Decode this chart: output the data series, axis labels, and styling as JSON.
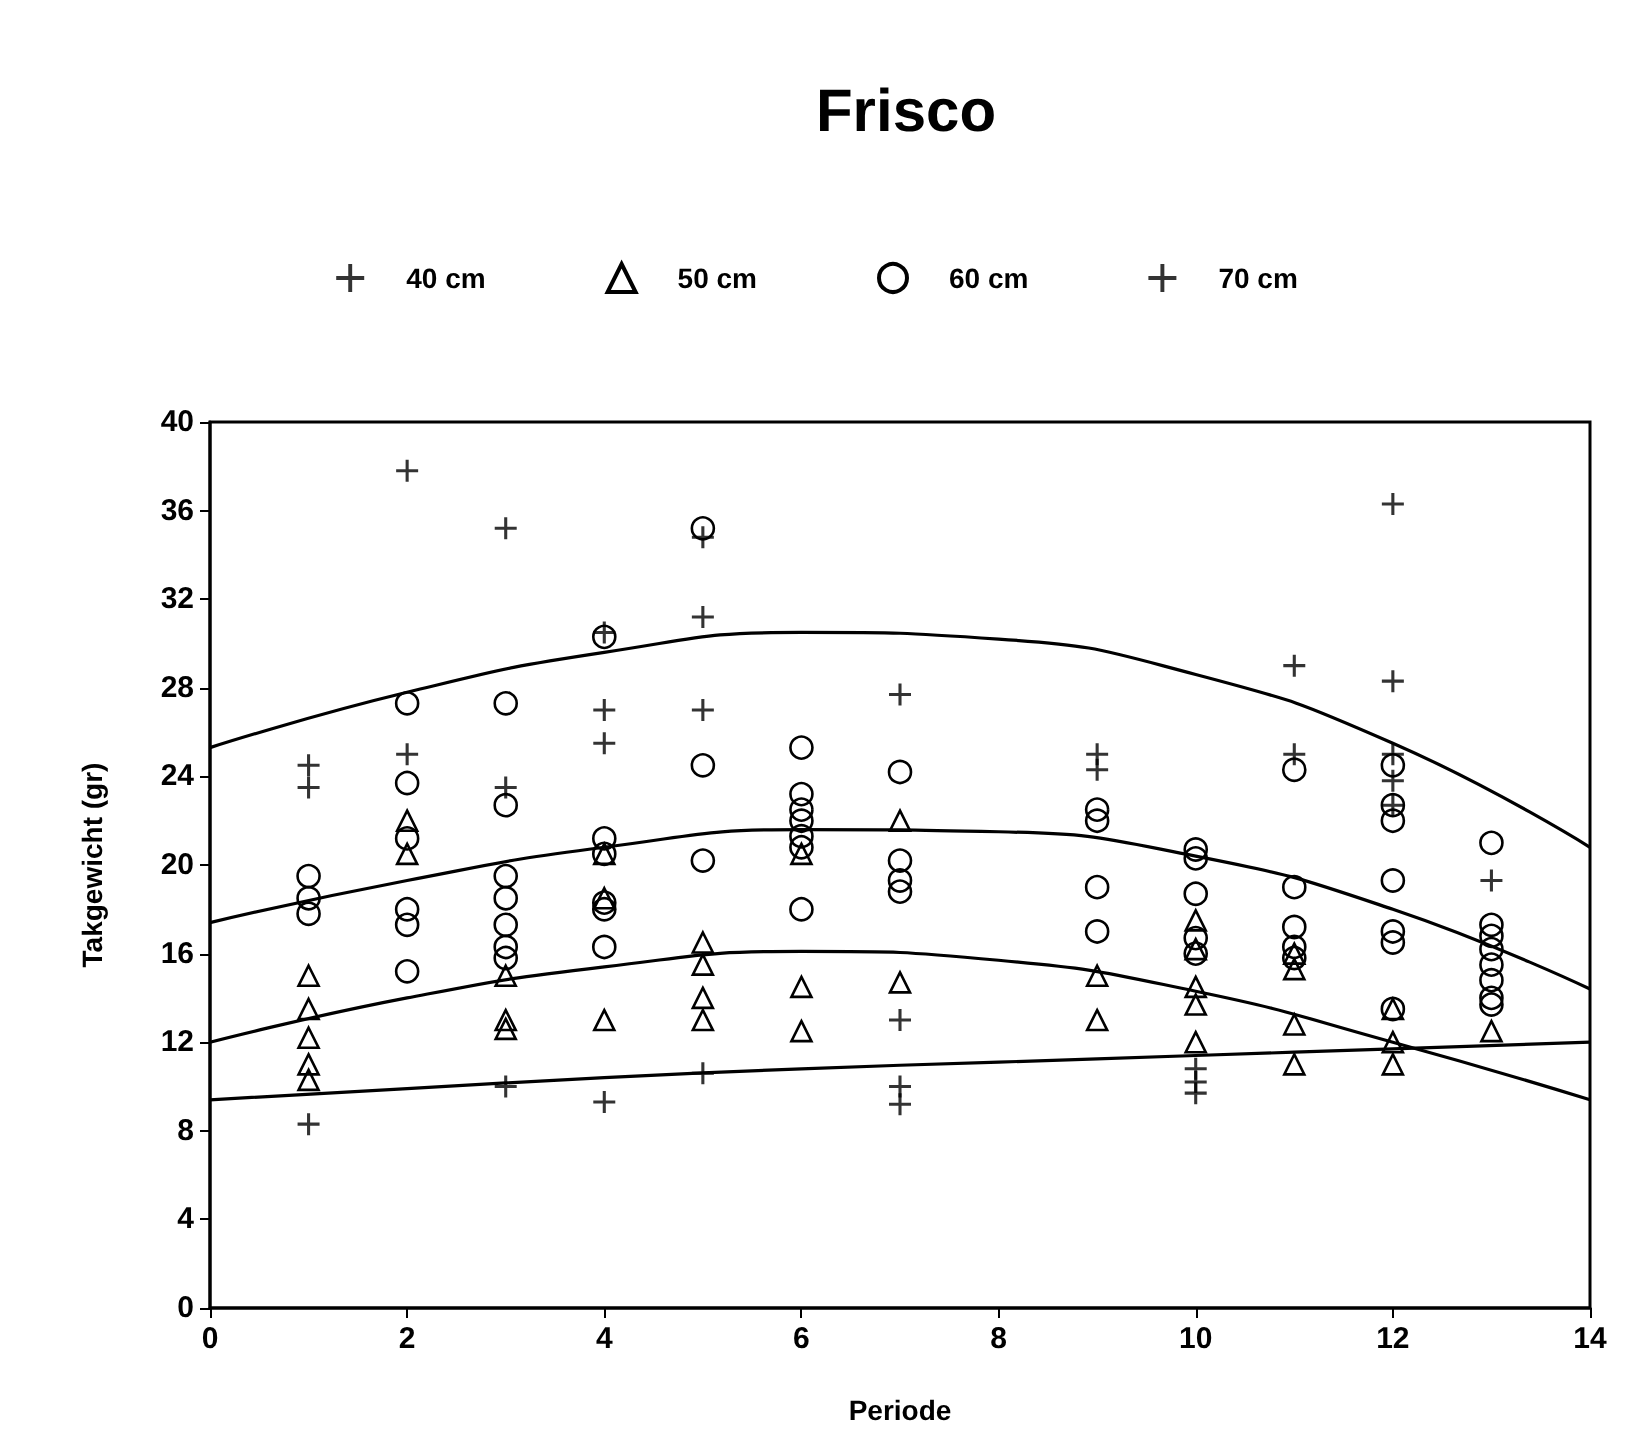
{
  "chart_data": {
    "type": "scatter",
    "title": "Frisco",
    "xlabel": "Periode",
    "ylabel": "Takgewicht (gr)",
    "xlim": [
      0,
      14
    ],
    "xticks": [
      0,
      2,
      4,
      6,
      8,
      10,
      12,
      14
    ],
    "ylim": [
      0,
      40
    ],
    "yticks": [
      0,
      4,
      8,
      12,
      16,
      20,
      24,
      28,
      32,
      36,
      40
    ],
    "grid": false,
    "legend": "top",
    "series": [
      {
        "name": "40 cm",
        "color": "#000000",
        "marker": "cross",
        "x": [
          1,
          3,
          4,
          5,
          7,
          7,
          7,
          10,
          10,
          10
        ],
        "values": [
          8.3,
          10,
          9.3,
          10.6,
          13,
          10,
          9.2,
          10.8,
          10.2,
          9.7
        ]
      },
      {
        "name": "50 cm",
        "color": "#000000",
        "marker": "triangle",
        "x": [
          1,
          1,
          1,
          1,
          1,
          2,
          2,
          3,
          3,
          3,
          4,
          4,
          4,
          5,
          5,
          5,
          5,
          6,
          6,
          6,
          7,
          7,
          9,
          9,
          10,
          10,
          10,
          10,
          10,
          11,
          11,
          11,
          11,
          12,
          12,
          12,
          13
        ],
        "values": [
          15,
          13.5,
          12.2,
          11,
          10.3,
          22,
          20.5,
          15,
          13,
          12.6,
          20.5,
          18.5,
          13,
          16.5,
          15.5,
          14,
          13,
          20.5,
          14.5,
          12.5,
          22,
          14.7,
          15,
          13,
          17.5,
          16.2,
          14.5,
          13.7,
          12,
          16,
          15.3,
          12.8,
          11,
          13.5,
          12,
          11,
          12.5
        ]
      },
      {
        "name": "60 cm",
        "color": "#000000",
        "marker": "circle",
        "x": [
          1,
          1,
          1,
          2,
          2,
          2,
          2,
          2,
          2,
          3,
          3,
          3,
          3,
          3,
          3,
          3,
          4,
          4,
          4,
          4,
          4,
          4,
          5,
          5,
          5,
          6,
          6,
          6,
          6,
          6,
          6,
          6,
          7,
          7,
          7,
          7,
          9,
          9,
          9,
          9,
          10,
          10,
          10,
          10,
          10,
          11,
          11,
          11,
          11,
          11,
          12,
          12,
          12,
          12,
          12,
          12,
          12,
          13,
          13,
          13,
          13,
          13,
          13,
          13,
          13
        ],
        "values": [
          19.5,
          18.5,
          17.8,
          27.3,
          23.7,
          21.2,
          18,
          17.3,
          15.2,
          27.3,
          22.7,
          19.5,
          18.5,
          17.3,
          16.3,
          15.8,
          21.2,
          20.5,
          18.3,
          18,
          16.3,
          30.3,
          35.2,
          24.5,
          20.2,
          25.3,
          23.2,
          22.5,
          22,
          21.3,
          20.8,
          18,
          24.2,
          20.2,
          19.3,
          18.8,
          22.5,
          22,
          19,
          17,
          20.7,
          20.3,
          18.7,
          16.7,
          16,
          24.3,
          19,
          17.2,
          16.3,
          15.8,
          24.5,
          22.7,
          22,
          19.3,
          17,
          16.5,
          13.5,
          21,
          17.3,
          16.8,
          16.2,
          15.5,
          14.8,
          14,
          13.7
        ]
      },
      {
        "name": "70 cm",
        "color": "#000000",
        "marker": "cross",
        "x": [
          1,
          1,
          2,
          2,
          3,
          3,
          4,
          4,
          4,
          5,
          5,
          5,
          7,
          9,
          9,
          11,
          11,
          12,
          12,
          12,
          12,
          12,
          13
        ],
        "values": [
          24.5,
          23.5,
          37.8,
          25,
          35.2,
          23.5,
          30.5,
          27,
          25.5,
          34.8,
          31.2,
          27,
          27.7,
          25,
          24.3,
          29,
          25,
          36.3,
          28.3,
          25,
          23.8,
          22.7,
          19.3
        ]
      },
      {
        "type": "line",
        "color": "#000000",
        "marker": "none",
        "x": [
          0,
          2,
          4,
          6,
          8,
          10,
          12,
          14
        ],
        "values": [
          25.3,
          27.8,
          29.6,
          30.5,
          30.2,
          28.6,
          25.5,
          20.8
        ]
      },
      {
        "type": "line",
        "color": "#000000",
        "marker": "none",
        "x": [
          0,
          2,
          4,
          6,
          8,
          10,
          12,
          14
        ],
        "values": [
          17.4,
          19.3,
          20.8,
          21.6,
          21.5,
          20.4,
          18.0,
          14.4
        ]
      },
      {
        "type": "line",
        "color": "#000000",
        "marker": "none",
        "x": [
          0,
          2,
          4,
          6,
          8,
          10,
          12,
          14
        ],
        "values": [
          12.0,
          14.0,
          15.4,
          16.1,
          15.7,
          14.3,
          12.0,
          9.4
        ]
      },
      {
        "type": "line",
        "color": "#000000",
        "marker": "none",
        "x": [
          0,
          2,
          4,
          6,
          8,
          10,
          12,
          14
        ],
        "values": [
          9.4,
          9.9,
          10.4,
          10.8,
          11.1,
          11.4,
          11.7,
          12.0
        ]
      }
    ]
  }
}
